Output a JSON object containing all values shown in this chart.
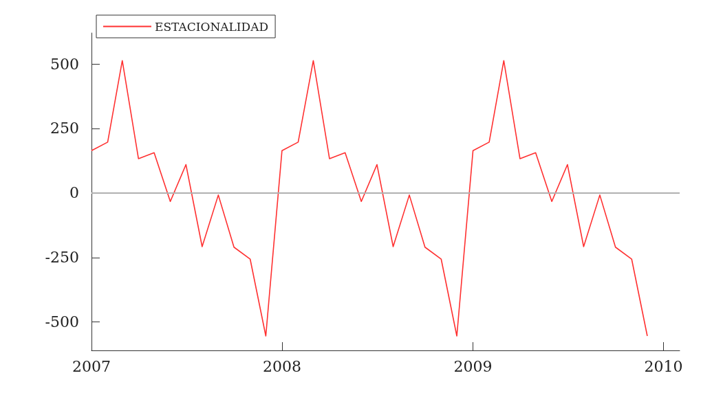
{
  "chart_data": {
    "type": "line",
    "x": [
      "2007-01",
      "2007-02",
      "2007-03",
      "2007-04",
      "2007-05",
      "2007-06",
      "2007-07",
      "2007-08",
      "2007-09",
      "2007-10",
      "2007-11",
      "2007-12",
      "2008-01",
      "2008-02",
      "2008-03",
      "2008-04",
      "2008-05",
      "2008-06",
      "2008-07",
      "2008-08",
      "2008-09",
      "2008-10",
      "2008-11",
      "2008-12",
      "2009-01",
      "2009-02",
      "2009-03",
      "2009-04",
      "2009-05",
      "2009-06",
      "2009-07",
      "2009-08",
      "2009-09",
      "2009-10",
      "2009-11",
      "2009-12"
    ],
    "series": [
      {
        "name": "ESTACIONALIDAD",
        "color": "#ff3030",
        "values": [
          164,
          197,
          513,
          133,
          156,
          -33,
          110,
          -208,
          -8,
          -210,
          -256,
          -554,
          164,
          197,
          513,
          133,
          156,
          -33,
          110,
          -208,
          -8,
          -210,
          -256,
          -554,
          164,
          197,
          513,
          133,
          156,
          -33,
          110,
          -208,
          -8,
          -210,
          -256,
          -554
        ]
      }
    ],
    "xlim": [
      "2007-01",
      "2010-02"
    ],
    "xticks": [
      "2007",
      "2008",
      "2009",
      "2010"
    ],
    "ylim": [
      -610,
      620
    ],
    "yticks": [
      -500,
      -250,
      0,
      250,
      500
    ],
    "ref_lines": [
      {
        "axis": "y",
        "value": 0,
        "color": "#b0b0b0"
      }
    ],
    "legend": "top left",
    "grid": false,
    "marker": "none",
    "line_style": "solid"
  }
}
